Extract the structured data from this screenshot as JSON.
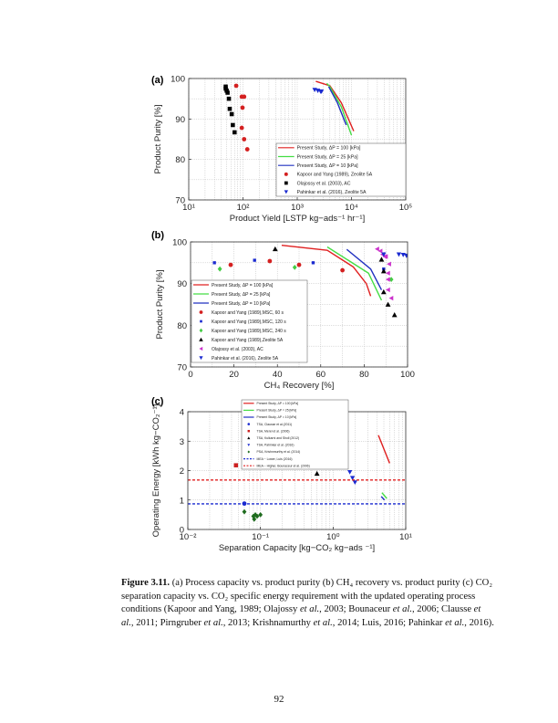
{
  "caption": {
    "label": "Figure 3.11.",
    "segments": [
      {
        "text": " (a) Process capacity vs. product purity (b) CH₄ recovery vs. product purity (c) CO₂ separation capacity vs. CO₂ specific energy requirement with the updated operating process conditions (Kapoor and Yang, 1989; Olajossy ",
        "italic": false
      },
      {
        "text": "et al.",
        "italic": true
      },
      {
        "text": ", 2003; Bounaceur ",
        "italic": false
      },
      {
        "text": "et al.",
        "italic": true
      },
      {
        "text": ", 2006; Clausse ",
        "italic": false
      },
      {
        "text": "et al.",
        "italic": true
      },
      {
        "text": ", 2011; Pirngruber ",
        "italic": false
      },
      {
        "text": "et al.",
        "italic": true
      },
      {
        "text": ", 2013; Krishnamurthy ",
        "italic": false
      },
      {
        "text": "et al.",
        "italic": true
      },
      {
        "text": ", 2014; Luis, 2016; Pahinkar ",
        "italic": false
      },
      {
        "text": "et al.",
        "italic": true
      },
      {
        "text": ", 2016).",
        "italic": false
      }
    ]
  },
  "page_number": "92",
  "chart_data": [
    {
      "panel_label": "(a)",
      "type": "line+scatter",
      "xlabel": "Product Yield [LSTP kg−ads⁻¹ hr⁻¹]",
      "ylabel": "Product Purity [%]",
      "xscale": "log",
      "xlim": [
        10,
        100000
      ],
      "ylim": [
        70,
        100
      ],
      "xticks": [
        10,
        100,
        1000,
        10000,
        100000
      ],
      "xticklabels": [
        "10¹",
        "10²",
        "10³",
        "10⁴",
        "10⁵"
      ],
      "yticks": [
        70,
        80,
        90,
        100
      ],
      "yticklabels": [
        "70",
        "80",
        "90",
        "100"
      ],
      "grid": true,
      "legend_position": "bottom-right",
      "series": [
        {
          "name": "Present Study,     ΔP = 100 [kPa]",
          "kind": "line",
          "color": "#e02020",
          "x": [
            2200,
            4000,
            6500,
            11000
          ],
          "y": [
            99.3,
            98.2,
            94,
            87
          ]
        },
        {
          "name": "Present Study,     ΔP = 25 [kPa]",
          "kind": "line",
          "color": "#44dd44",
          "x": [
            3500,
            4000,
            6500,
            10000
          ],
          "y": [
            98.8,
            98,
            93,
            86
          ]
        },
        {
          "name": "Present Study,     ΔP = 10 [kPa]",
          "kind": "line",
          "color": "#2030c0",
          "x": [
            3800,
            5500,
            8000
          ],
          "y": [
            98,
            94,
            88.5
          ]
        },
        {
          "name": "Kapoor and Yang (1989), Zeolite 5A",
          "kind": "marker",
          "marker": "circle",
          "color": "#d42020",
          "x": [
            75,
            95,
            105,
            98,
            95,
            105,
            120
          ],
          "y": [
            98.2,
            95.5,
            95.5,
            92.8,
            87.8,
            85,
            82.5
          ]
        },
        {
          "name": "Olajossy et al. (2003), AC",
          "kind": "marker",
          "marker": "square",
          "color": "#000000",
          "x": [
            48,
            48,
            50,
            52,
            55,
            57,
            62,
            65,
            70
          ],
          "y": [
            98,
            97.5,
            97,
            96.5,
            95,
            92.5,
            91.2,
            88.5,
            86.7
          ]
        },
        {
          "name": "Pahinkar et al. (2016), Zeolite 5A",
          "kind": "marker",
          "marker": "tri-down",
          "color": "#1a2ad0",
          "x": [
            2100,
            2400,
            2700,
            2800
          ],
          "y": [
            97.2,
            97,
            96.8,
            96.8
          ]
        }
      ]
    },
    {
      "panel_label": "(b)",
      "type": "line+scatter",
      "xlabel": "CH₄ Recovery [%]",
      "ylabel": "Product Purity [%]",
      "xscale": "linear",
      "xlim": [
        0,
        100
      ],
      "ylim": [
        70,
        100
      ],
      "xticks": [
        0,
        20,
        40,
        60,
        80,
        100
      ],
      "xticklabels": [
        "0",
        "20",
        "40",
        "60",
        "80",
        "100"
      ],
      "yticks": [
        70,
        80,
        90,
        100
      ],
      "yticklabels": [
        "70",
        "80",
        "90",
        "100"
      ],
      "grid": true,
      "legend_position": "bottom-left",
      "series": [
        {
          "name": "Present Study,     ΔP = 100 [kPa]",
          "kind": "line",
          "color": "#e02020",
          "x": [
            42,
            63,
            75,
            81,
            83
          ],
          "y": [
            99.2,
            98,
            94,
            90,
            87
          ]
        },
        {
          "name": "Present Study,     ΔP = 25 [kPa]",
          "kind": "line",
          "color": "#44dd44",
          "x": [
            63,
            82,
            88
          ],
          "y": [
            98.8,
            92.5,
            86
          ]
        },
        {
          "name": "Present Study,     ΔP = 10 [kPa]",
          "kind": "line",
          "color": "#2030c0",
          "x": [
            72,
            83,
            88
          ],
          "y": [
            98.2,
            93.5,
            88.5
          ]
        },
        {
          "name": "Kapoor and Yang (1989),MSC, 60 s",
          "kind": "marker",
          "marker": "circle",
          "color": "#d42020",
          "x": [
            18.5,
            36.5,
            50,
            70
          ],
          "y": [
            94.5,
            95.4,
            94.5,
            93.2
          ]
        },
        {
          "name": "Kapoor and Yang (1989),MSC, 120 s",
          "kind": "marker",
          "marker": "square-small",
          "color": "#1a2ad0",
          "x": [
            11,
            29.5,
            56.5,
            89
          ],
          "y": [
            95,
            95.6,
            95,
            93.5
          ]
        },
        {
          "name": "Kapoor and Yang (1989),MSC, 240 s",
          "kind": "marker",
          "marker": "diamond",
          "color": "#44cc44",
          "x": [
            13.5,
            48,
            92.5
          ],
          "y": [
            93.5,
            93.9,
            91
          ]
        },
        {
          "name": "Kapoor and Yang (1989),Zeolite 5A",
          "kind": "marker",
          "marker": "tri-up",
          "color": "#000000",
          "x": [
            39,
            88,
            89,
            89,
            91,
            94
          ],
          "y": [
            98.3,
            95.8,
            93,
            88,
            85,
            82.5
          ]
        },
        {
          "name": "Olajossy et al. (2003), AC",
          "kind": "marker",
          "marker": "tri-left",
          "color": "#cc33cc",
          "x": [
            86,
            87.5,
            88.5,
            89.5,
            90,
            91.5,
            91,
            91,
            91,
            92.5
          ],
          "y": [
            98.3,
            97.8,
            97,
            96.5,
            96.5,
            94.7,
            92.5,
            91,
            88.5,
            86.5
          ]
        },
        {
          "name": "Pahinkar et al. (2016), Zeolite 5A",
          "kind": "marker",
          "marker": "tri-down",
          "color": "#1a2ad0",
          "x": [
            89,
            96,
            98,
            99.5
          ],
          "y": [
            97,
            97,
            96.9,
            96.7
          ]
        }
      ]
    },
    {
      "panel_label": "(c)",
      "type": "line+scatter",
      "xlabel": "Separation Capacity [kg−CO₂ kg−ads ⁻¹]",
      "ylabel": "Operating Energy [kWh kg−CO₂⁻¹]",
      "xscale": "log",
      "xlim": [
        0.01,
        10
      ],
      "ylim": [
        0,
        4
      ],
      "xticks": [
        0.01,
        0.1,
        1,
        10
      ],
      "xticklabels": [
        "10⁻²",
        "10⁻¹",
        "10⁰",
        "10¹"
      ],
      "yticks": [
        0,
        1,
        2,
        3,
        4
      ],
      "yticklabels": [
        "0",
        "1",
        "2",
        "3",
        "4"
      ],
      "grid": true,
      "legend_position": "top-center",
      "series": [
        {
          "name": "Present Study,      ΔP = 100 [kPa]",
          "kind": "line",
          "color": "#e02020",
          "x": [
            4.2,
            6.0
          ],
          "y": [
            3.2,
            2.25
          ]
        },
        {
          "name": "Present Study,      ΔP = 25 [kPa]",
          "kind": "line",
          "color": "#44dd44",
          "x": [
            4.7,
            5.5
          ],
          "y": [
            1.25,
            1.05
          ]
        },
        {
          "name": "Present Study,      ΔP = 10 [kPa]",
          "kind": "line",
          "color": "#2030c0",
          "x": [
            4.6,
            5.1
          ],
          "y": [
            1.12,
            1.0
          ]
        },
        {
          "name": "TSA, Clausse et al.(2011)",
          "kind": "marker",
          "marker": "circle",
          "color": "#1a2ad0",
          "x": [
            0.06
          ],
          "y": [
            0.88
          ]
        },
        {
          "name": "TSA, Merel et al. (2006)",
          "kind": "marker",
          "marker": "square",
          "color": "#cc2020",
          "x": [
            0.046
          ],
          "y": [
            2.18
          ]
        },
        {
          "name": "TSA, Kulkarni and Sholl (2012)",
          "kind": "marker",
          "marker": "tri-up",
          "color": "#000000",
          "x": [
            0.6
          ],
          "y": [
            1.9
          ]
        },
        {
          "name": "TSA, Pahinkar et al. (2016)",
          "kind": "marker",
          "marker": "tri-down",
          "color": "#1a2ad0",
          "x": [
            1.7,
            1.85,
            2.0
          ],
          "y": [
            1.95,
            1.75,
            1.6
          ]
        },
        {
          "name": "PSA, Krishnmurthy et al. (2014)",
          "kind": "marker",
          "marker": "diamond",
          "color": "#1e6b1e",
          "x": [
            0.06,
            0.08,
            0.082,
            0.085,
            0.09,
            0.1
          ],
          "y": [
            0.6,
            0.45,
            0.35,
            0.5,
            0.45,
            0.5
          ]
        },
        {
          "name": "MEA − Lower, Luis (2016)",
          "kind": "hline",
          "color": "#1a2ad0",
          "y": [
            0.87
          ]
        },
        {
          "name": "MEA − Higher, Bounaceur et al. (2006)",
          "kind": "hline",
          "color": "#e02020",
          "y": [
            1.68
          ]
        }
      ]
    }
  ]
}
